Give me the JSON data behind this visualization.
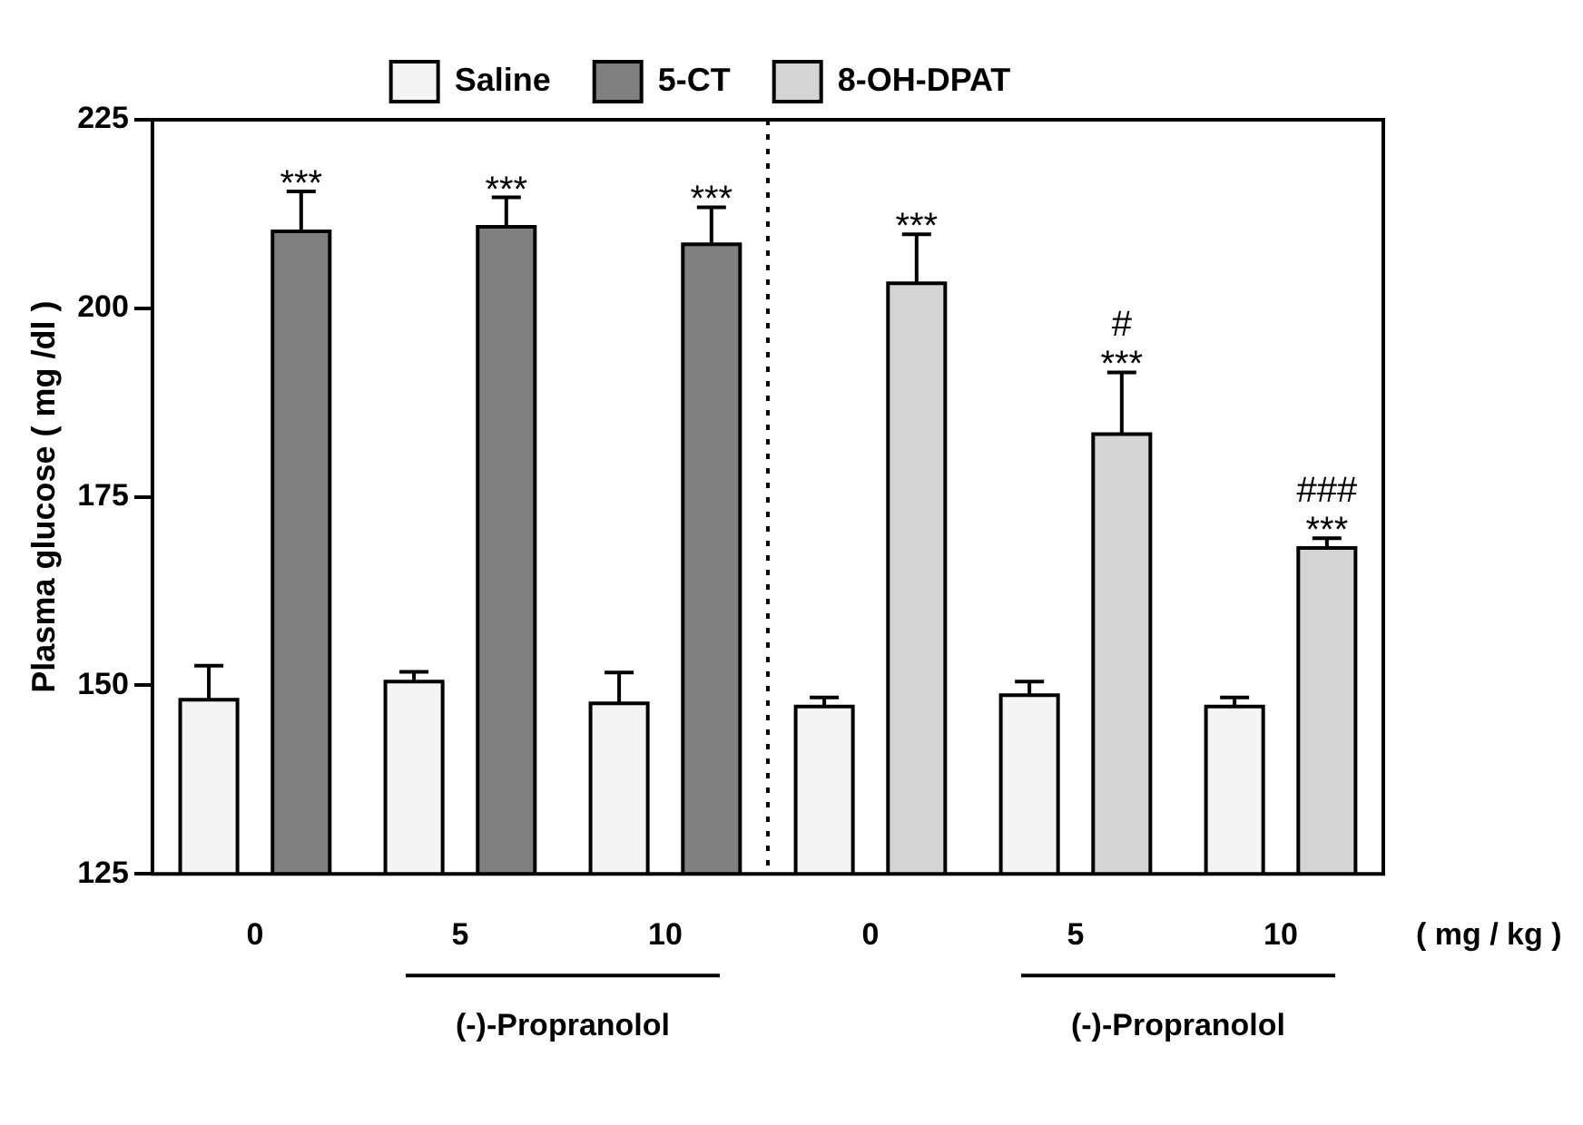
{
  "chart_data": {
    "type": "bar",
    "ylabel": "Plasma glucose ( mg /dl )",
    "categories": [
      "0",
      "5",
      "10",
      "0",
      "5",
      "10"
    ],
    "series": [
      {
        "name": "Saline",
        "color": "#f4f4f4",
        "values": [
          148.1,
          150.5,
          147.6,
          147.2,
          148.7,
          147.2
        ],
        "errors": [
          [
            148.1,
            152.6
          ],
          [
            150.5,
            151.8
          ],
          [
            147.6,
            151.7
          ],
          [
            147.2,
            148.4
          ],
          [
            148.7,
            150.5
          ],
          [
            147.2,
            148.4
          ]
        ]
      },
      {
        "name": "5-CT",
        "color": "#808080",
        "values": [
          210.2,
          210.8,
          208.5,
          null,
          null,
          null
        ],
        "errors": [
          [
            210.2,
            215.5
          ],
          [
            210.8,
            214.7
          ],
          [
            208.5,
            213.4
          ],
          null,
          null,
          null
        ],
        "value_labels": [
          "***",
          "***",
          "***",
          null,
          null,
          null
        ]
      },
      {
        "name": "8-OH-DPAT",
        "color": "#d4d4d4",
        "values": [
          null,
          null,
          null,
          203.3,
          183.3,
          168.2
        ],
        "errors": [
          null,
          null,
          null,
          [
            203.3,
            209.8
          ],
          [
            183.3,
            191.5
          ],
          [
            168.2,
            169.5
          ]
        ],
        "value_labels": [
          null,
          null,
          null,
          "***",
          "#\n***",
          "###\n***"
        ]
      }
    ],
    "ylim": [
      125,
      225
    ],
    "yticks": [
      125,
      150,
      175,
      200,
      225
    ],
    "grid": false,
    "legend": "top",
    "annotations": [
      "( mg / kg )",
      "(-)-Propranolol",
      "(-)-Propranolol"
    ]
  }
}
